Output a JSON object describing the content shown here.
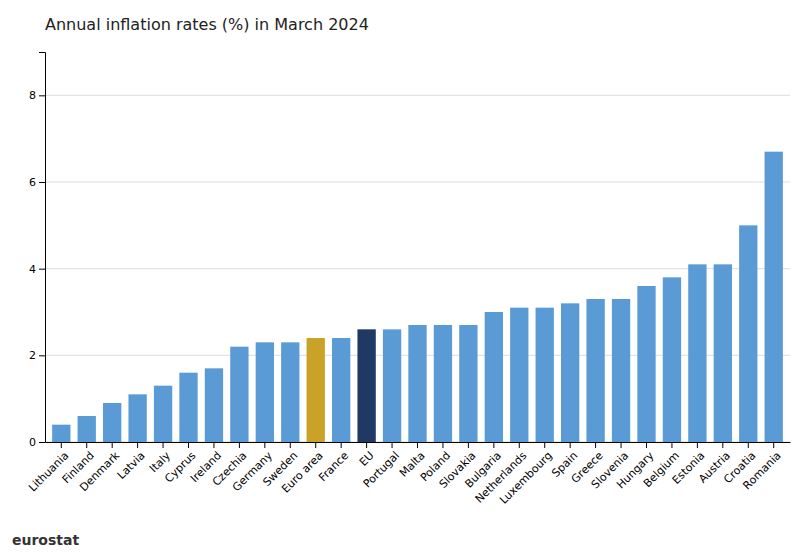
{
  "chart_data": {
    "type": "bar",
    "title": "Annual inflation rates (%) in March 2024",
    "categories": [
      "Lithuania",
      "Finland",
      "Denmark",
      "Latvia",
      "Italy",
      "Cyprus",
      "Ireland",
      "Czechia",
      "Germany",
      "Sweden",
      "Euro area",
      "France",
      "EU",
      "Portugal",
      "Malta",
      "Poland",
      "Slovakia",
      "Bulgaria",
      "Netherlands",
      "Luxembourg",
      "Spain",
      "Greece",
      "Slovenia",
      "Hungary",
      "Belgium",
      "Estonia",
      "Austria",
      "Croatia",
      "Romania"
    ],
    "values": [
      0.4,
      0.6,
      0.9,
      1.1,
      1.3,
      1.6,
      1.7,
      2.2,
      2.3,
      2.3,
      2.4,
      2.4,
      2.6,
      2.6,
      2.7,
      2.7,
      2.7,
      3.0,
      3.1,
      3.1,
      3.2,
      3.3,
      3.3,
      3.6,
      3.8,
      4.1,
      4.1,
      5.0,
      6.7
    ],
    "colors": [
      "#5B9BD5",
      "#5B9BD5",
      "#5B9BD5",
      "#5B9BD5",
      "#5B9BD5",
      "#5B9BD5",
      "#5B9BD5",
      "#5B9BD5",
      "#5B9BD5",
      "#5B9BD5",
      "#C9A227",
      "#5B9BD5",
      "#1F3864",
      "#5B9BD5",
      "#5B9BD5",
      "#5B9BD5",
      "#5B9BD5",
      "#5B9BD5",
      "#5B9BD5",
      "#5B9BD5",
      "#5B9BD5",
      "#5B9BD5",
      "#5B9BD5",
      "#5B9BD5",
      "#5B9BD5",
      "#5B9BD5",
      "#5B9BD5",
      "#5B9BD5",
      "#5B9BD5"
    ],
    "ylim": [
      0,
      9
    ],
    "yticks": [
      0,
      2,
      4,
      6,
      8
    ],
    "grid": true,
    "annotations": [
      "eurostat"
    ]
  }
}
